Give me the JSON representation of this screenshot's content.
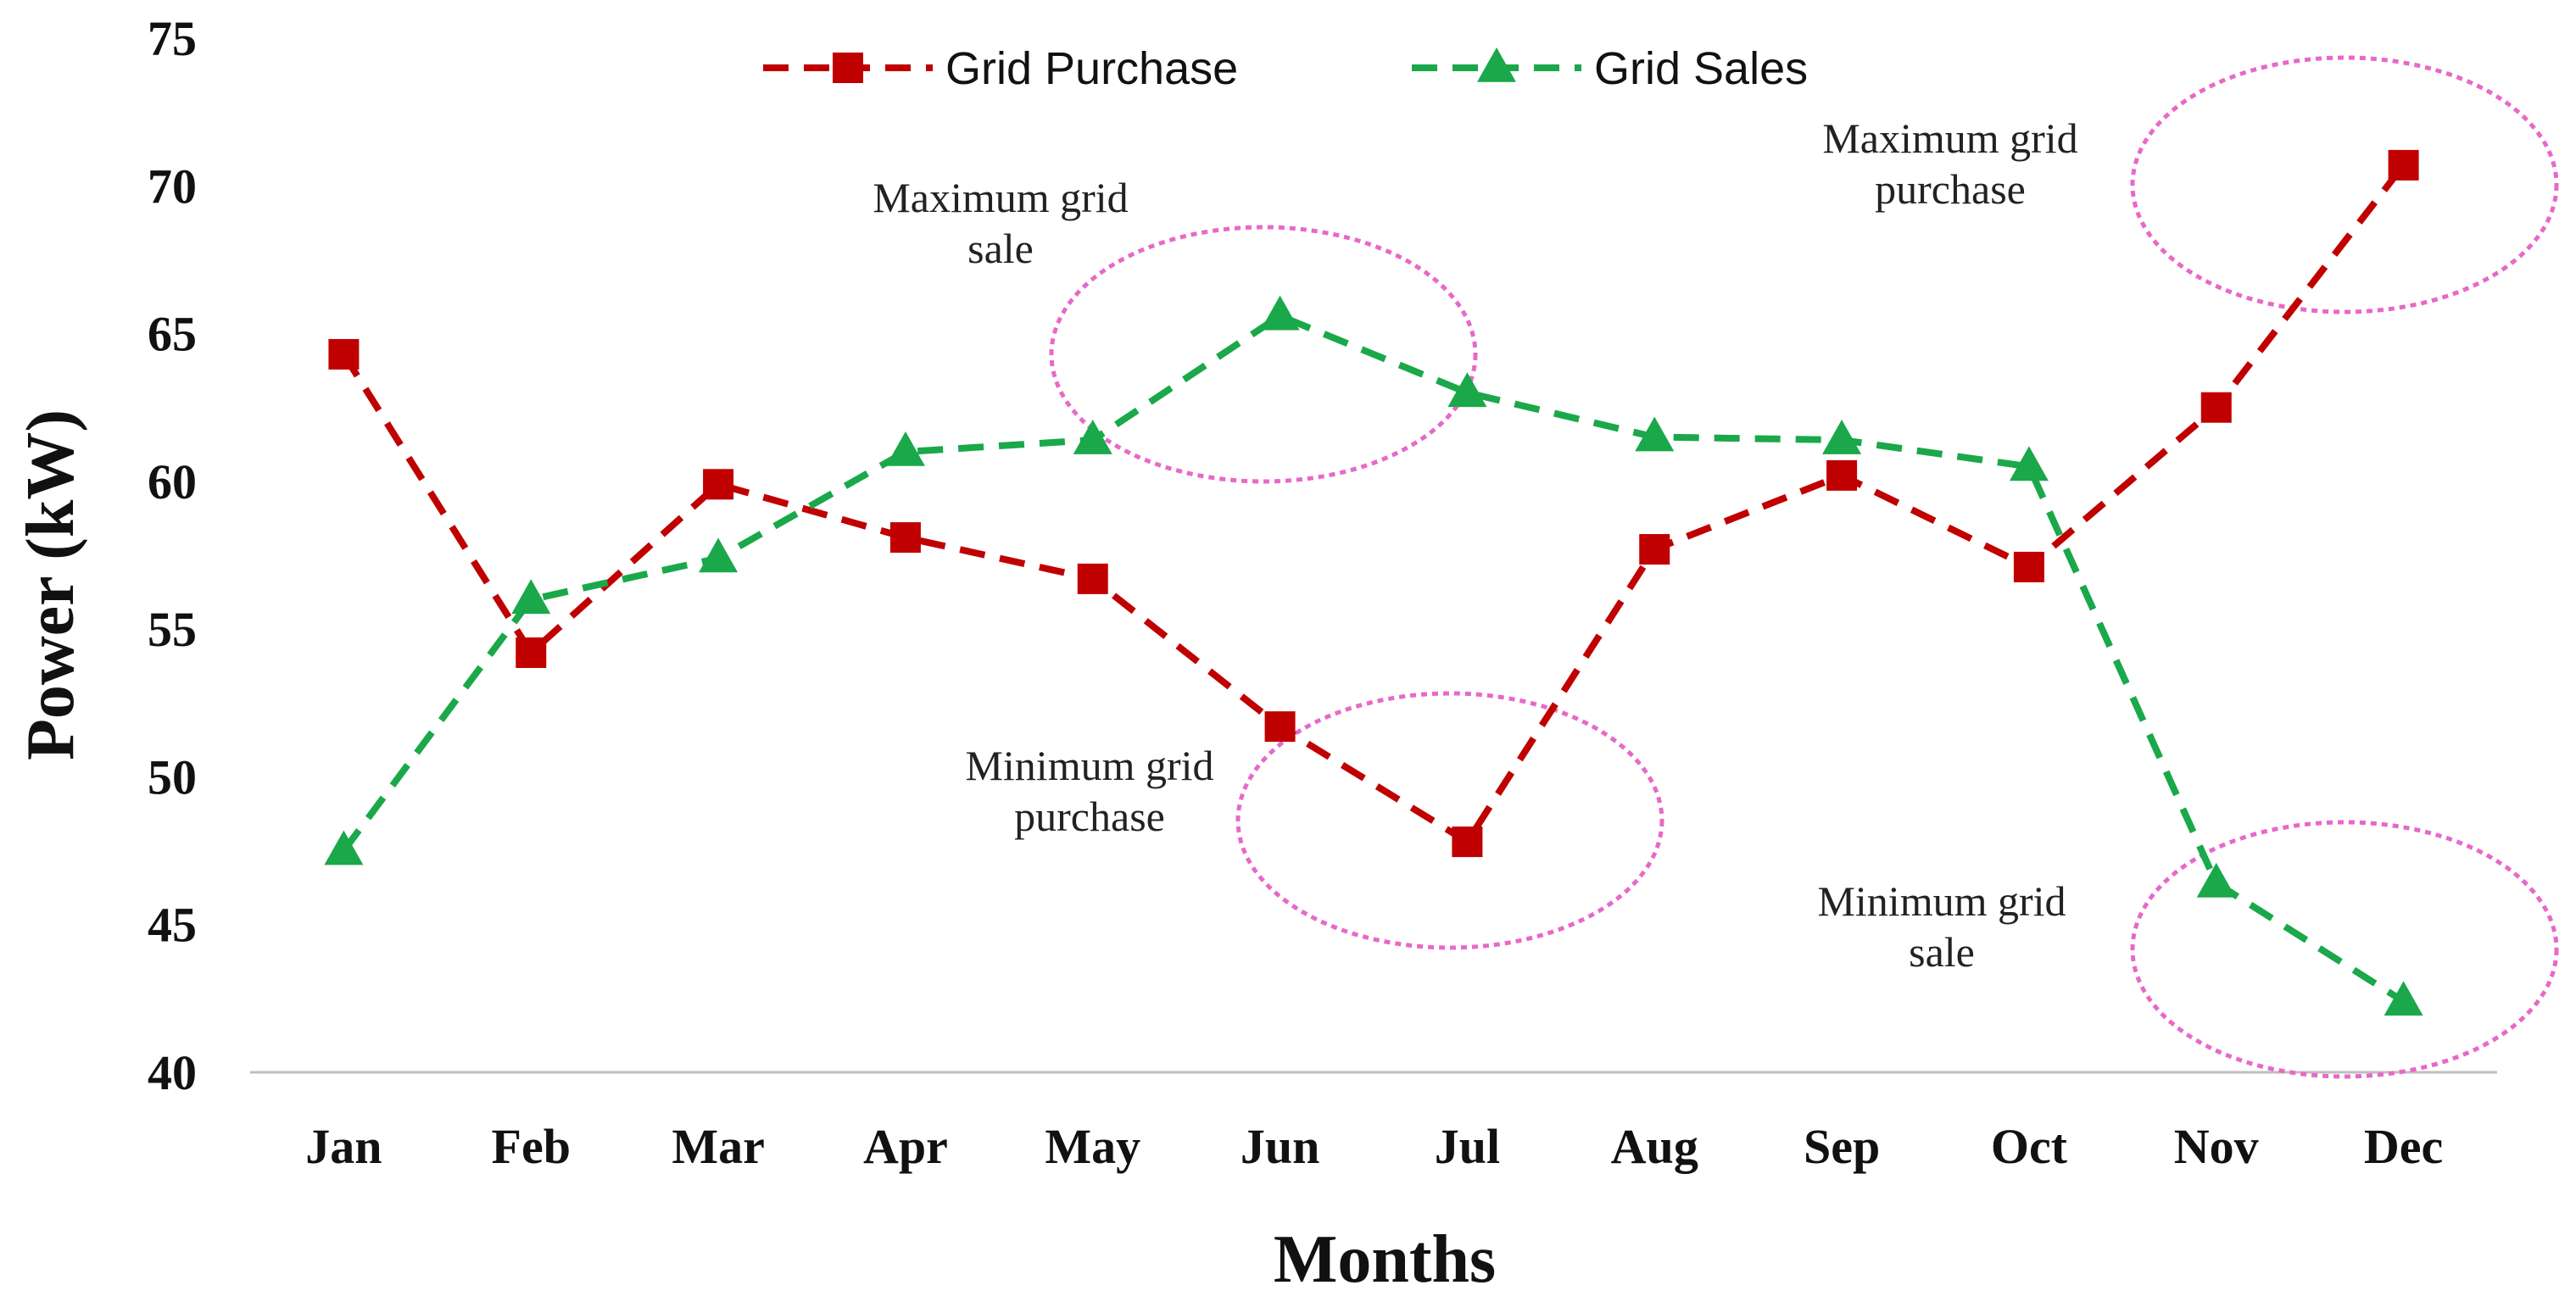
{
  "chart_data": {
    "type": "line",
    "title": "",
    "xlabel": "Months",
    "ylabel": "Power (kW)",
    "ylim": [
      40,
      75
    ],
    "yticks": [
      40,
      45,
      50,
      55,
      60,
      65,
      70,
      75
    ],
    "grid": false,
    "legend_position": "top-center",
    "categories": [
      "Jan",
      "Feb",
      "Mar",
      "Apr",
      "May",
      "Jun",
      "Jul",
      "Aug",
      "Sep",
      "Oct",
      "Nov",
      "Dec"
    ],
    "series": [
      {
        "name": "Grid Purchase",
        "color": "#c00000",
        "marker": "square",
        "line_style": "dashed",
        "values": [
          64.3,
          54.2,
          59.9,
          58.1,
          56.7,
          51.7,
          47.8,
          57.7,
          60.2,
          57.1,
          62.5,
          70.7
        ]
      },
      {
        "name": "Grid Sales",
        "color": "#1aa84a",
        "marker": "triangle",
        "line_style": "dashed",
        "values": [
          47.5,
          56.0,
          57.4,
          61.0,
          61.4,
          65.6,
          63.0,
          61.5,
          61.4,
          60.5,
          46.4,
          42.4
        ]
      }
    ],
    "annotations": [
      {
        "text": [
          "Maximum grid",
          "sale"
        ],
        "x": "Jun",
        "y": 65.6,
        "color": "#e868c8"
      },
      {
        "text": [
          "Minimum grid",
          "purchase"
        ],
        "x": "Jul",
        "y": 47.8,
        "color": "#e868c8"
      },
      {
        "text": [
          "Maximum grid",
          "purchase"
        ],
        "x": "Dec",
        "y": 70.7,
        "color": "#e868c8"
      },
      {
        "text": [
          "Minimum grid",
          "sale"
        ],
        "x": "Dec",
        "y": 42.4,
        "color": "#e868c8"
      }
    ]
  }
}
